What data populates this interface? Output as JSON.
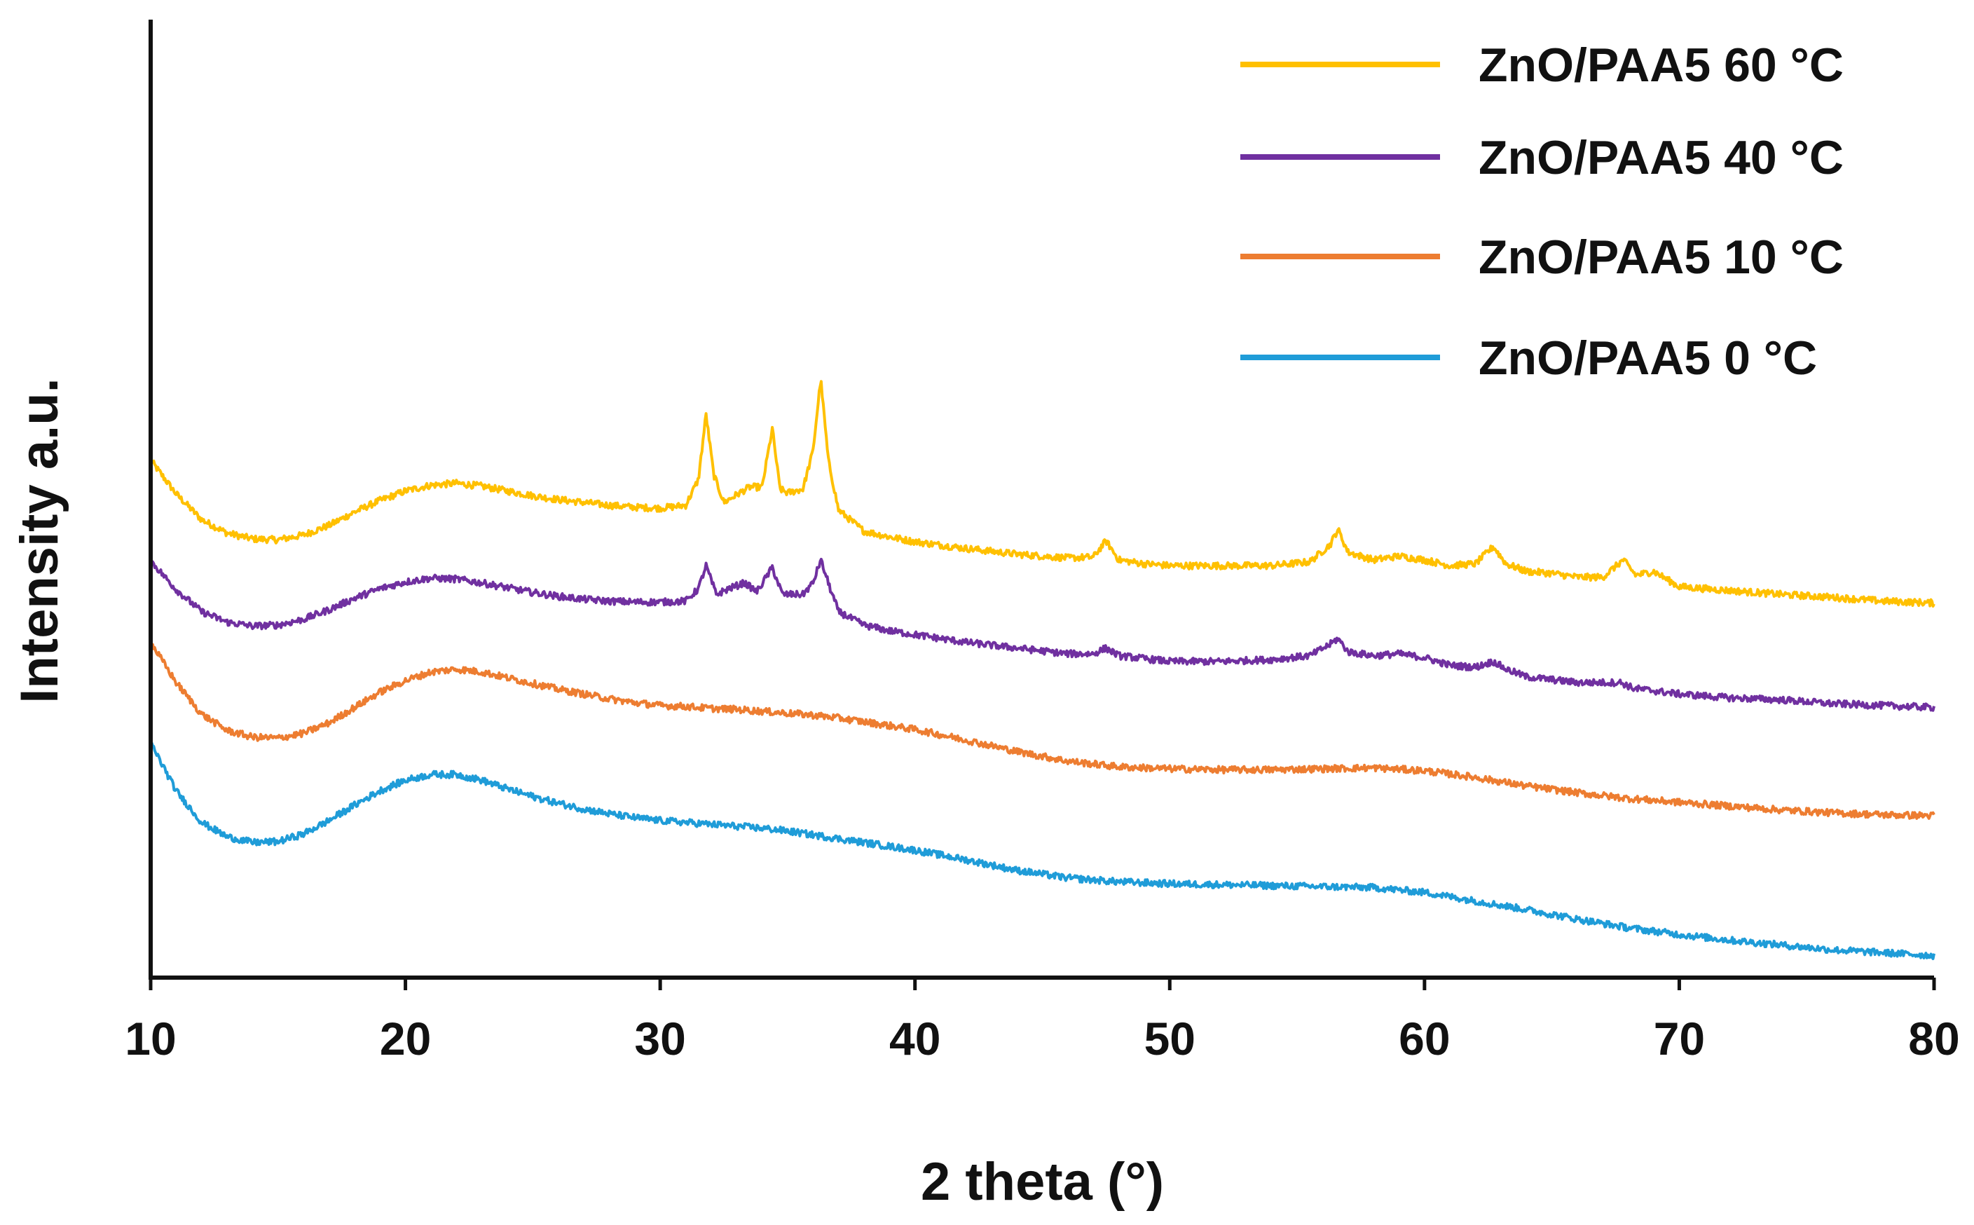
{
  "chart_data": {
    "type": "line",
    "title": "",
    "xlabel": "2 theta (°)",
    "ylabel": "Intensity a.u.",
    "xlim": [
      10,
      80
    ],
    "ylim": [
      0,
      10
    ],
    "x_ticks": [
      "10",
      "20",
      "30",
      "40",
      "50",
      "60",
      "70",
      "80"
    ],
    "x_tick_values": [
      10,
      20,
      30,
      40,
      50,
      60,
      70,
      80
    ],
    "y_ticks": [],
    "grid": false,
    "legend_position": "top-right",
    "series": [
      {
        "name": "ZnO/PAA5 60 °C",
        "color": "#FFC000",
        "points": [
          [
            10,
            5.4
          ],
          [
            11,
            5.05
          ],
          [
            12,
            4.78
          ],
          [
            13,
            4.64
          ],
          [
            14,
            4.58
          ],
          [
            15,
            4.57
          ],
          [
            16,
            4.62
          ],
          [
            17,
            4.72
          ],
          [
            18,
            4.86
          ],
          [
            19,
            4.98
          ],
          [
            20,
            5.08
          ],
          [
            21,
            5.14
          ],
          [
            22,
            5.16
          ],
          [
            23,
            5.13
          ],
          [
            24,
            5.08
          ],
          [
            25,
            5.03
          ],
          [
            26,
            4.99
          ],
          [
            27,
            4.96
          ],
          [
            28,
            4.93
          ],
          [
            29,
            4.91
          ],
          [
            30,
            4.9
          ],
          [
            31,
            4.93
          ],
          [
            31.5,
            5.2
          ],
          [
            31.8,
            5.88
          ],
          [
            32.1,
            5.25
          ],
          [
            32.5,
            4.96
          ],
          [
            33,
            5.04
          ],
          [
            33.5,
            5.12
          ],
          [
            34,
            5.12
          ],
          [
            34.4,
            5.73
          ],
          [
            34.7,
            5.1
          ],
          [
            35,
            5.06
          ],
          [
            35.6,
            5.1
          ],
          [
            36,
            5.5
          ],
          [
            36.3,
            6.25
          ],
          [
            36.6,
            5.4
          ],
          [
            37,
            4.88
          ],
          [
            38,
            4.66
          ],
          [
            39,
            4.6
          ],
          [
            40,
            4.55
          ],
          [
            42,
            4.48
          ],
          [
            44,
            4.42
          ],
          [
            46,
            4.38
          ],
          [
            47,
            4.39
          ],
          [
            47.5,
            4.56
          ],
          [
            48,
            4.36
          ],
          [
            49,
            4.32
          ],
          [
            50,
            4.3
          ],
          [
            52,
            4.3
          ],
          [
            54,
            4.3
          ],
          [
            55.5,
            4.34
          ],
          [
            56.3,
            4.52
          ],
          [
            56.6,
            4.68
          ],
          [
            57,
            4.44
          ],
          [
            58,
            4.36
          ],
          [
            59,
            4.4
          ],
          [
            60,
            4.36
          ],
          [
            61,
            4.3
          ],
          [
            62,
            4.32
          ],
          [
            62.7,
            4.5
          ],
          [
            63.2,
            4.32
          ],
          [
            64,
            4.24
          ],
          [
            65,
            4.22
          ],
          [
            66,
            4.18
          ],
          [
            67,
            4.18
          ],
          [
            67.8,
            4.36
          ],
          [
            68.3,
            4.2
          ],
          [
            69,
            4.24
          ],
          [
            70,
            4.08
          ],
          [
            72,
            4.04
          ],
          [
            74,
            4.0
          ],
          [
            76,
            3.97
          ],
          [
            78,
            3.93
          ],
          [
            80,
            3.91
          ]
        ]
      },
      {
        "name": "ZnO/PAA5 40 °C",
        "color": "#7030A0",
        "points": [
          [
            10,
            4.35
          ],
          [
            11,
            4.05
          ],
          [
            12,
            3.82
          ],
          [
            13,
            3.71
          ],
          [
            14,
            3.67
          ],
          [
            15,
            3.68
          ],
          [
            16,
            3.74
          ],
          [
            17,
            3.84
          ],
          [
            18,
            3.96
          ],
          [
            19,
            4.06
          ],
          [
            20,
            4.13
          ],
          [
            21,
            4.17
          ],
          [
            22,
            4.16
          ],
          [
            23,
            4.12
          ],
          [
            24,
            4.07
          ],
          [
            25,
            4.02
          ],
          [
            26,
            3.98
          ],
          [
            27,
            3.95
          ],
          [
            28,
            3.93
          ],
          [
            29,
            3.92
          ],
          [
            30,
            3.92
          ],
          [
            31,
            3.93
          ],
          [
            31.5,
            4.06
          ],
          [
            31.8,
            4.3
          ],
          [
            32.2,
            4.0
          ],
          [
            32.7,
            4.06
          ],
          [
            33.3,
            4.12
          ],
          [
            33.8,
            4.03
          ],
          [
            34.4,
            4.28
          ],
          [
            34.8,
            4.0
          ],
          [
            35.6,
            4.0
          ],
          [
            36,
            4.12
          ],
          [
            36.3,
            4.36
          ],
          [
            36.7,
            4.04
          ],
          [
            37,
            3.82
          ],
          [
            38,
            3.68
          ],
          [
            39,
            3.62
          ],
          [
            40,
            3.58
          ],
          [
            42,
            3.5
          ],
          [
            44,
            3.44
          ],
          [
            46,
            3.38
          ],
          [
            47,
            3.38
          ],
          [
            47.5,
            3.44
          ],
          [
            48,
            3.36
          ],
          [
            50,
            3.3
          ],
          [
            52,
            3.3
          ],
          [
            54,
            3.32
          ],
          [
            55.5,
            3.36
          ],
          [
            56.3,
            3.48
          ],
          [
            56.6,
            3.54
          ],
          [
            57,
            3.4
          ],
          [
            58,
            3.36
          ],
          [
            59,
            3.38
          ],
          [
            60,
            3.34
          ],
          [
            61,
            3.26
          ],
          [
            62,
            3.24
          ],
          [
            62.7,
            3.3
          ],
          [
            63.2,
            3.22
          ],
          [
            64,
            3.14
          ],
          [
            66,
            3.08
          ],
          [
            67.7,
            3.08
          ],
          [
            68.2,
            3.02
          ],
          [
            70,
            2.96
          ],
          [
            72,
            2.92
          ],
          [
            74,
            2.9
          ],
          [
            76,
            2.86
          ],
          [
            78,
            2.84
          ],
          [
            80,
            2.82
          ]
        ]
      },
      {
        "name": "ZnO/PAA5 10 °C",
        "color": "#ED7D31",
        "points": [
          [
            10,
            3.5
          ],
          [
            11,
            3.08
          ],
          [
            12,
            2.75
          ],
          [
            13,
            2.58
          ],
          [
            14,
            2.51
          ],
          [
            15,
            2.5
          ],
          [
            16,
            2.55
          ],
          [
            17,
            2.66
          ],
          [
            18,
            2.82
          ],
          [
            19,
            2.98
          ],
          [
            20,
            3.1
          ],
          [
            21,
            3.19
          ],
          [
            22,
            3.22
          ],
          [
            23,
            3.19
          ],
          [
            24,
            3.13
          ],
          [
            25,
            3.07
          ],
          [
            26,
            3.01
          ],
          [
            27,
            2.96
          ],
          [
            28,
            2.91
          ],
          [
            29,
            2.87
          ],
          [
            30,
            2.84
          ],
          [
            31,
            2.83
          ],
          [
            32,
            2.81
          ],
          [
            33,
            2.8
          ],
          [
            34,
            2.78
          ],
          [
            35,
            2.76
          ],
          [
            36,
            2.74
          ],
          [
            37,
            2.71
          ],
          [
            38,
            2.67
          ],
          [
            39,
            2.63
          ],
          [
            40,
            2.59
          ],
          [
            42,
            2.48
          ],
          [
            44,
            2.36
          ],
          [
            46,
            2.26
          ],
          [
            48,
            2.2
          ],
          [
            50,
            2.18
          ],
          [
            52,
            2.17
          ],
          [
            54,
            2.17
          ],
          [
            56,
            2.18
          ],
          [
            58,
            2.19
          ],
          [
            60,
            2.16
          ],
          [
            62,
            2.09
          ],
          [
            64,
            2.0
          ],
          [
            66,
            1.93
          ],
          [
            68,
            1.87
          ],
          [
            70,
            1.83
          ],
          [
            72,
            1.79
          ],
          [
            74,
            1.75
          ],
          [
            76,
            1.72
          ],
          [
            78,
            1.7
          ],
          [
            80,
            1.69
          ]
        ]
      },
      {
        "name": "ZnO/PAA5 0 °C",
        "color": "#1F9CD8",
        "points": [
          [
            10,
            2.45
          ],
          [
            11,
            1.95
          ],
          [
            12,
            1.62
          ],
          [
            13,
            1.47
          ],
          [
            14,
            1.41
          ],
          [
            15,
            1.42
          ],
          [
            16,
            1.5
          ],
          [
            17,
            1.64
          ],
          [
            18,
            1.8
          ],
          [
            19,
            1.95
          ],
          [
            20,
            2.06
          ],
          [
            21,
            2.12
          ],
          [
            22,
            2.12
          ],
          [
            23,
            2.06
          ],
          [
            24,
            1.97
          ],
          [
            25,
            1.89
          ],
          [
            26,
            1.82
          ],
          [
            27,
            1.76
          ],
          [
            28,
            1.71
          ],
          [
            29,
            1.67
          ],
          [
            30,
            1.64
          ],
          [
            31,
            1.62
          ],
          [
            32,
            1.6
          ],
          [
            33,
            1.58
          ],
          [
            34,
            1.56
          ],
          [
            35,
            1.53
          ],
          [
            36,
            1.49
          ],
          [
            37,
            1.45
          ],
          [
            38,
            1.41
          ],
          [
            39,
            1.37
          ],
          [
            40,
            1.33
          ],
          [
            42,
            1.23
          ],
          [
            44,
            1.12
          ],
          [
            46,
            1.04
          ],
          [
            48,
            1.0
          ],
          [
            50,
            0.98
          ],
          [
            52,
            0.97
          ],
          [
            54,
            0.96
          ],
          [
            56,
            0.95
          ],
          [
            58,
            0.94
          ],
          [
            60,
            0.89
          ],
          [
            62,
            0.8
          ],
          [
            64,
            0.71
          ],
          [
            66,
            0.61
          ],
          [
            68,
            0.52
          ],
          [
            70,
            0.45
          ],
          [
            72,
            0.39
          ],
          [
            74,
            0.34
          ],
          [
            76,
            0.29
          ],
          [
            78,
            0.26
          ],
          [
            80,
            0.23
          ]
        ]
      }
    ]
  }
}
